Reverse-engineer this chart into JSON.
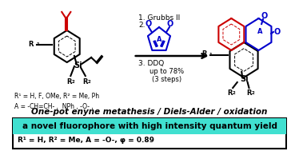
{
  "bg_color": "#ffffff",
  "border_color": "#000000",
  "highlight_color": "#40e0d0",
  "title_text": "One-pot enyne metathesis / Diels-Alder / oxidation",
  "banner_text": "a novel fluorophore with high intensity quantum yield",
  "subtitle_text": "R¹ = H, R² = Me, A = -O-, φ = 0.89",
  "conditions_line1": "1. Grubbs II",
  "conditions_line3": "3. DDQ",
  "yield_text": "up to 78%\n(3 steps)",
  "r_groups_text": "R¹ = H, F, OMe, R² = Me, Ph\nA = -CH=CH- ,  NPh , -O- ,",
  "arrow_color": "#000000",
  "red_color": "#cc0000",
  "blue_color": "#0000cc",
  "black_color": "#000000",
  "figsize": [
    3.74,
    1.89
  ],
  "dpi": 100
}
